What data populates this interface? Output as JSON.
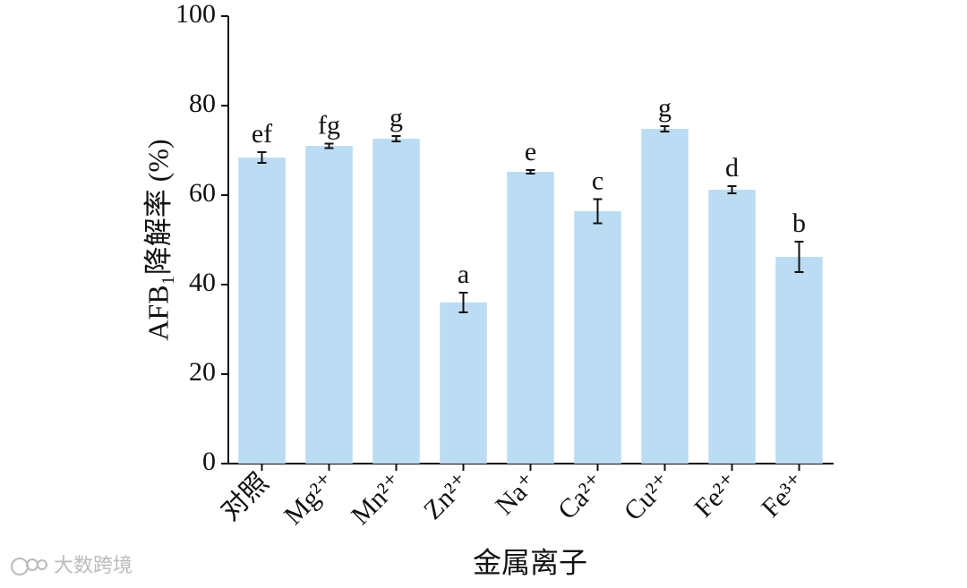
{
  "chart_data": {
    "type": "bar",
    "y_label": "AFB₁降解率 (%)",
    "x_label": "金属离子",
    "categories": [
      "对照",
      "Mg²⁺",
      "Mn²⁺",
      "Zn²⁺",
      "Na⁺",
      "Ca²⁺",
      "Cu²⁺",
      "Fe²⁺",
      "Fe³⁺"
    ],
    "values": [
      68.4,
      71.0,
      72.6,
      36.0,
      65.2,
      56.4,
      74.8,
      61.2,
      46.2
    ],
    "errors": [
      1.2,
      0.5,
      0.6,
      2.2,
      0.4,
      2.7,
      0.6,
      0.8,
      3.4
    ],
    "labels": [
      "ef",
      "fg",
      "g",
      "a",
      "e",
      "c",
      "g",
      "d",
      "b"
    ],
    "color": "#bcdcf3",
    "ylim": [
      0,
      100
    ],
    "yticks": [
      0,
      20,
      40,
      60,
      80,
      100
    ],
    "grid": false
  },
  "watermark": "大数跨境"
}
